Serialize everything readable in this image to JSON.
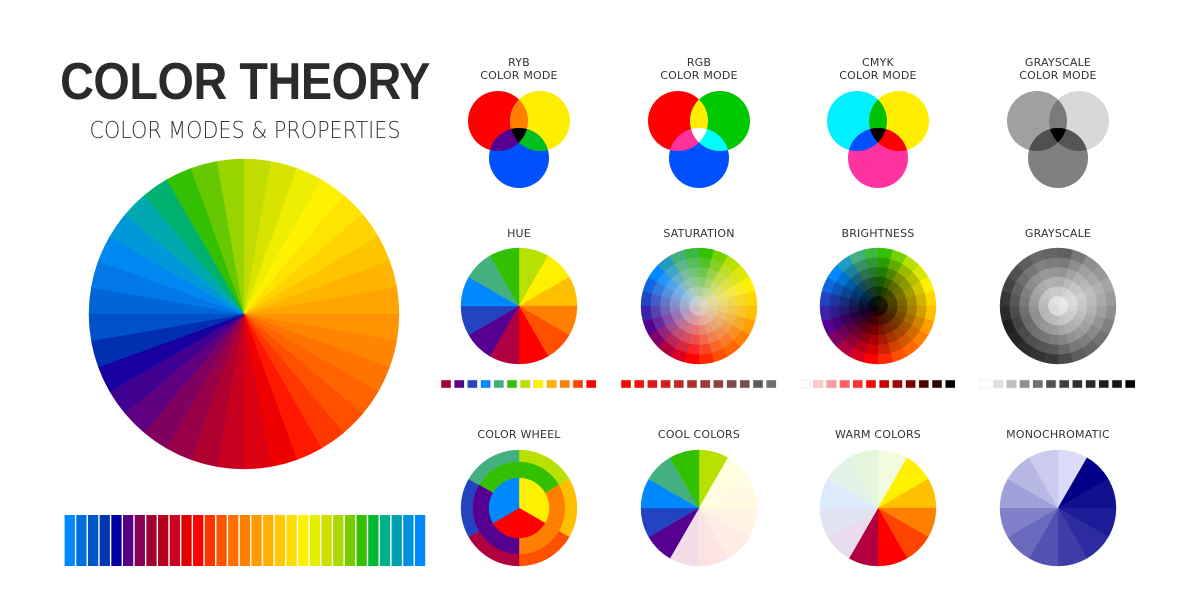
{
  "header": {
    "title": "COLOR THEORY",
    "subtitle": "COLOR MODES & PROPERTIES"
  },
  "big_wheel": {
    "colors": [
      "#33c000",
      "#66c800",
      "#99d400",
      "#c0dc00",
      "#d8e400",
      "#eeee00",
      "#fff200",
      "#ffe400",
      "#ffd400",
      "#ffc400",
      "#ffb400",
      "#ffa400",
      "#ff9400",
      "#ff8400",
      "#ff7400",
      "#ff6400",
      "#ff5000",
      "#ff3800",
      "#ff1800",
      "#ee0000",
      "#dd0010",
      "#c80020",
      "#b00030",
      "#980048",
      "#800060",
      "#600080",
      "#400090",
      "#1800a0",
      "#0030b0",
      "#0050c8",
      "#0066d8",
      "#0078e8",
      "#0088f0",
      "#0098d8",
      "#00a8b0",
      "#00b070"
    ]
  },
  "big_strip": {
    "colors": [
      "#0088ff",
      "#0070e0",
      "#0058c8",
      "#0038b0",
      "#0000a0",
      "#550088",
      "#880055",
      "#a00030",
      "#b80020",
      "#cc0020",
      "#e00000",
      "#ff0000",
      "#ff3300",
      "#ff5500",
      "#ff7000",
      "#ff8000",
      "#ff9900",
      "#ffb000",
      "#ffc800",
      "#ffdd00",
      "#fff000",
      "#e6ee00",
      "#cce000",
      "#aad800",
      "#77cc00",
      "#33c000",
      "#00b833",
      "#00b088",
      "#00a0b0",
      "#0090e0",
      "#0088ff"
    ]
  },
  "venns": [
    {
      "label1": "RYB",
      "label2": "COLOR MODE",
      "colors": {
        "a": "#ff0000",
        "b": "#ffee00",
        "c": "#0050ff",
        "ab": "#ff7f00",
        "ac": "#550090",
        "bc": "#00c020",
        "abc": "#000000"
      }
    },
    {
      "label1": "RGB",
      "label2": "COLOR MODE",
      "colors": {
        "a": "#ff0000",
        "b": "#00c800",
        "c": "#0050ff",
        "ab": "#ffee00",
        "ac": "#ff3399",
        "bc": "#00ffff",
        "abc": "#ffffff"
      }
    },
    {
      "label1": "CMYK",
      "label2": "COLOR MODE",
      "colors": {
        "a": "#00f0ff",
        "b": "#ffee00",
        "c": "#ff33a0",
        "ab": "#00c000",
        "ac": "#0050ff",
        "bc": "#ff0000",
        "abc": "#000000"
      }
    },
    {
      "label1": "GRAYSCALE",
      "label2": "COLOR MODE",
      "colors": {
        "a": "#a0a0a0",
        "b": "#d8d8d8",
        "c": "#808080",
        "ab": "#7a7a7a",
        "ac": "#505050",
        "bc": "#555555",
        "abc": "#000000"
      }
    }
  ],
  "properties": [
    {
      "label": "HUE",
      "kind": "hue",
      "strip": [
        "#a00040",
        "#550090",
        "#2244c0",
        "#0088ff",
        "#40b080",
        "#33c000",
        "#b8e000",
        "#fff000",
        "#ffb000",
        "#ff8000",
        "#ff4000",
        "#ff0000"
      ]
    },
    {
      "label": "SATURATION",
      "kind": "saturation",
      "strip": [
        "#ff0000",
        "#f01010",
        "#e01818",
        "#d02020",
        "#c02828",
        "#b03030",
        "#a03838",
        "#904040",
        "#804848",
        "#705050",
        "#605858",
        "#707070"
      ]
    },
    {
      "label": "BRIGHTNESS",
      "kind": "brightness",
      "strip": [
        "#ffffff",
        "#ffc8c8",
        "#ff9898",
        "#ff6060",
        "#ff3030",
        "#ff0000",
        "#d00000",
        "#a00000",
        "#780000",
        "#500000",
        "#280000",
        "#000000"
      ]
    },
    {
      "label": "GRAYSCALE",
      "kind": "grayscale",
      "strip": [
        "#ffffff",
        "#e0e0e0",
        "#c0c0c0",
        "#909090",
        "#707070",
        "#505050",
        "#404040",
        "#303030",
        "#282828",
        "#1e1e1e",
        "#141414",
        "#000000"
      ]
    }
  ],
  "hue_colors": [
    "#b8e000",
    "#fff000",
    "#ffc000",
    "#ff8000",
    "#ff5000",
    "#ff0000",
    "#b00040",
    "#550090",
    "#2244c0",
    "#0088ff",
    "#44b080",
    "#33c000"
  ],
  "schemes": [
    {
      "label": "COLOR WHEEL",
      "kind": "colorwheel",
      "outer": [
        "#b8e000",
        "#ffc000",
        "#ff5000",
        "#b00040",
        "#2244c0",
        "#44b080"
      ],
      "middle": [
        "#33c000",
        "#ff8000",
        "#550090"
      ],
      "inner": [
        "#fff000",
        "#ff0000",
        "#0088ff"
      ]
    },
    {
      "label": "COOL COLORS",
      "kind": "pie",
      "colors": [
        "#b8e000",
        "#fffde0",
        "#fffae0",
        "#fff4e4",
        "#ffece4",
        "#fde4e4",
        "#f2dde8",
        "#550090",
        "#2244c0",
        "#0088ff",
        "#44b080",
        "#33c000"
      ]
    },
    {
      "label": "WARM COLORS",
      "kind": "pie",
      "colors": [
        "#f2fbe0",
        "#fff000",
        "#ffc000",
        "#ff8000",
        "#ff4400",
        "#ff0000",
        "#b00040",
        "#e8dcee",
        "#e0e4f4",
        "#dcecfc",
        "#e2f2e8",
        "#e4f6dc"
      ]
    },
    {
      "label": "MONOCHROMATIC",
      "kind": "pie",
      "colors": [
        "#dcdcf8",
        "#000088",
        "#111190",
        "#1c1c98",
        "#2c2ca0",
        "#3e3ea8",
        "#5252b2",
        "#6a6abc",
        "#8080c8",
        "#a0a0d8",
        "#b8b8e4",
        "#ccccf0"
      ]
    }
  ]
}
